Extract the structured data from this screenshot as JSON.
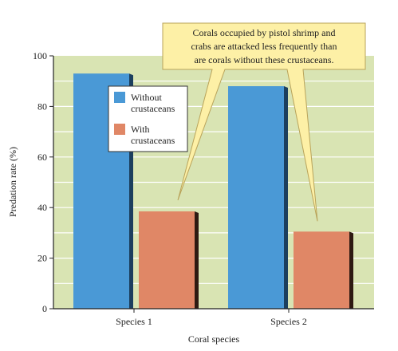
{
  "colors": {
    "plot_background": "#d9e4b3",
    "gridline": "#ffffff",
    "without_front": "#4a99d6",
    "without_side": "#1c3f5e",
    "with_front": "#e08766",
    "with_side": "#2e1a12",
    "callout_fill": "#fdf0a6",
    "callout_stroke": "#b9a35a",
    "axis": "#222222"
  },
  "chart_data": {
    "type": "bar",
    "categories": [
      "Species 1",
      "Species 2"
    ],
    "series": [
      {
        "name": "Without crustaceans",
        "legend_lines": [
          "Without",
          "crustaceans"
        ],
        "values": [
          93,
          88
        ]
      },
      {
        "name": "With crustaceans",
        "legend_lines": [
          "With",
          "crustaceans"
        ],
        "values": [
          38.5,
          30.5
        ]
      }
    ],
    "xlabel": "Coral species",
    "ylabel": "Predation rate (%)",
    "ylim": [
      0,
      100
    ],
    "yticks": [
      0,
      20,
      40,
      60,
      80,
      100
    ],
    "grid": true,
    "legend_position": "top-left",
    "annotation": {
      "lines": [
        "Corals occupied by pistol shrimp and",
        "crabs are attacked less frequently than",
        "are corals without these crustaceans."
      ],
      "points_to": [
        {
          "category": "Species 1",
          "series": "With crustaceans"
        },
        {
          "category": "Species 2",
          "series": "With crustaceans"
        }
      ]
    }
  }
}
